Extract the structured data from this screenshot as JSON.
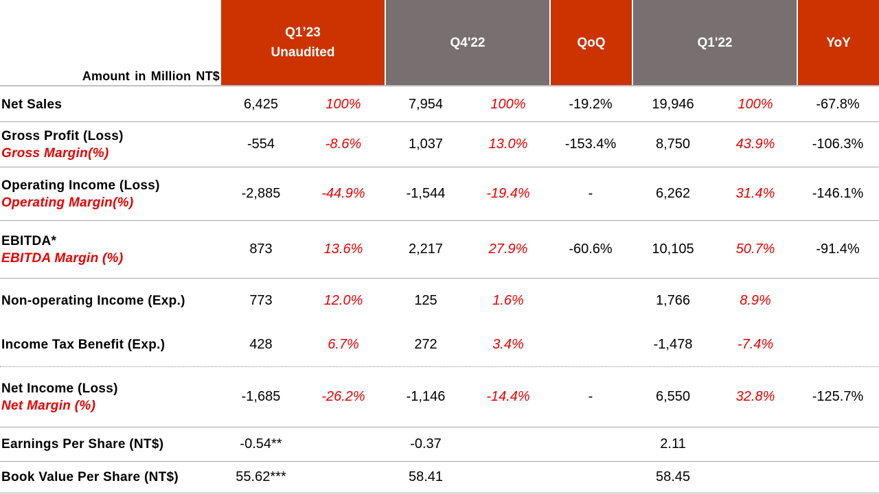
{
  "header": {
    "amount_label": "Amount in Million  NT$",
    "q1_23_line1": "Q1’23",
    "q1_23_line2": "Unaudited",
    "q4_22": "Q4'22",
    "qoq": "QoQ",
    "q1_22": "Q1'22",
    "yoy": "YoY"
  },
  "colors": {
    "header_red": "#cc3300",
    "header_gray": "#787070",
    "percent_red": "#e60000"
  },
  "rows": [
    {
      "label": "Net Sales",
      "sublabel": "",
      "q1_23": "6,425",
      "q1_23_pct": "100%",
      "q4_22": "7,954",
      "q4_22_pct": "100%",
      "qoq": "-19.2%",
      "q1_22": "19,946",
      "q1_22_pct": "100%",
      "yoy": "-67.8%"
    },
    {
      "label": "Gross Profit (Loss)",
      "sublabel": "Gross Margin(%)",
      "q1_23": "-554",
      "q1_23_pct": "-8.6%",
      "q4_22": "1,037",
      "q4_22_pct": "13.0%",
      "qoq": "-153.4%",
      "q1_22": "8,750",
      "q1_22_pct": "43.9%",
      "yoy": "-106.3%"
    },
    {
      "label": "Operating Income (Loss)",
      "sublabel": "Operating Margin(%)",
      "q1_23": "-2,885",
      "q1_23_pct": "-44.9%",
      "q4_22": "-1,544",
      "q4_22_pct": "-19.4%",
      "qoq": "-",
      "q1_22": "6,262",
      "q1_22_pct": "31.4%",
      "yoy": "-146.1%"
    },
    {
      "label": "EBITDA*",
      "sublabel": "EBITDA Margin (%)",
      "q1_23": "873",
      "q1_23_pct": "13.6%",
      "q4_22": "2,217",
      "q4_22_pct": "27.9%",
      "qoq": "-60.6%",
      "q1_22": "10,105",
      "q1_22_pct": "50.7%",
      "yoy": "-91.4%"
    },
    {
      "label": "Non-operating Income (Exp.)",
      "sublabel": "",
      "q1_23": "773",
      "q1_23_pct": "12.0%",
      "q4_22": "125",
      "q4_22_pct": "1.6%",
      "qoq": "",
      "q1_22": "1,766",
      "q1_22_pct": "8.9%",
      "yoy": ""
    },
    {
      "label": "Income Tax Benefit (Exp.)",
      "sublabel": "",
      "q1_23": "428",
      "q1_23_pct": "6.7%",
      "q4_22": "272",
      "q4_22_pct": "3.4%",
      "qoq": "",
      "q1_22": "-1,478",
      "q1_22_pct": "-7.4%",
      "yoy": ""
    },
    {
      "label": "Net Income (Loss)",
      "sublabel": "Net Margin (%)",
      "q1_23": "-1,685",
      "q1_23_pct": "-26.2%",
      "q4_22": "-1,146",
      "q4_22_pct": "-14.4%",
      "qoq": "-",
      "q1_22": "6,550",
      "q1_22_pct": "32.8%",
      "yoy": "-125.7%"
    },
    {
      "label": "Earnings Per Share (NT$)",
      "sublabel": "",
      "q1_23": "-0.54**",
      "q1_23_pct": "",
      "q4_22": "-0.37",
      "q4_22_pct": "",
      "qoq": "",
      "q1_22": "2.11",
      "q1_22_pct": "",
      "yoy": ""
    },
    {
      "label": "Book Value Per Share (NT$)",
      "sublabel": "",
      "q1_23": "55.62***",
      "q1_23_pct": "",
      "q4_22": "58.41",
      "q4_22_pct": "",
      "qoq": "",
      "q1_22": "58.45",
      "q1_22_pct": "",
      "yoy": ""
    }
  ]
}
